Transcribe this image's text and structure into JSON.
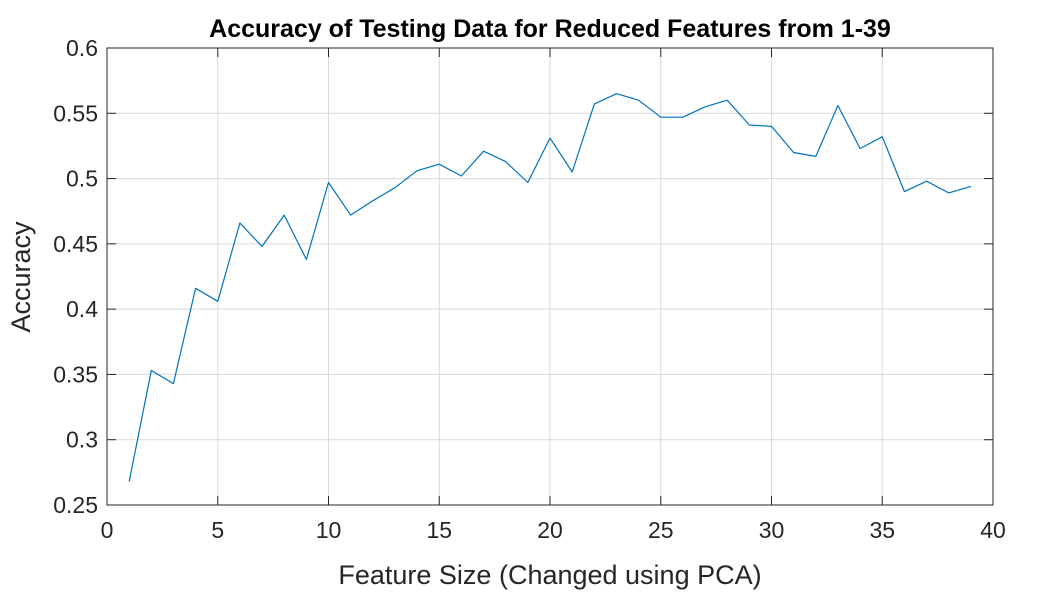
{
  "chart_data": {
    "type": "line",
    "title": "Accuracy of Testing Data for Reduced Features from 1-39",
    "xlabel": "Feature Size (Changed using PCA)",
    "ylabel": "Accuracy",
    "xlim": [
      0,
      40
    ],
    "ylim": [
      0.25,
      0.6
    ],
    "x_ticks": [
      0,
      5,
      10,
      15,
      20,
      25,
      30,
      35,
      40
    ],
    "y_ticks": [
      0.25,
      0.3,
      0.35,
      0.4,
      0.45,
      0.5,
      0.55,
      0.6
    ],
    "x_tick_labels": [
      "0",
      "5",
      "10",
      "15",
      "20",
      "25",
      "30",
      "35",
      "40"
    ],
    "y_tick_labels": [
      "0.25",
      "0.3",
      "0.35",
      "0.4",
      "0.45",
      "0.5",
      "0.55",
      "0.6"
    ],
    "grid": true,
    "legend": "none",
    "line_color": "#0072BD",
    "x": [
      1,
      2,
      3,
      4,
      5,
      6,
      7,
      8,
      9,
      10,
      11,
      12,
      13,
      14,
      15,
      16,
      17,
      18,
      19,
      20,
      21,
      22,
      23,
      24,
      25,
      26,
      27,
      28,
      29,
      30,
      31,
      32,
      33,
      34,
      35,
      36,
      37,
      38,
      39
    ],
    "y": [
      0.268,
      0.353,
      0.343,
      0.416,
      0.406,
      0.466,
      0.448,
      0.472,
      0.438,
      0.497,
      0.472,
      0.483,
      0.493,
      0.506,
      0.511,
      0.502,
      0.521,
      0.513,
      0.497,
      0.531,
      0.505,
      0.557,
      0.565,
      0.56,
      0.547,
      0.547,
      0.555,
      0.56,
      0.541,
      0.54,
      0.52,
      0.517,
      0.556,
      0.523,
      0.532,
      0.49,
      0.498,
      0.489,
      0.494
    ]
  }
}
